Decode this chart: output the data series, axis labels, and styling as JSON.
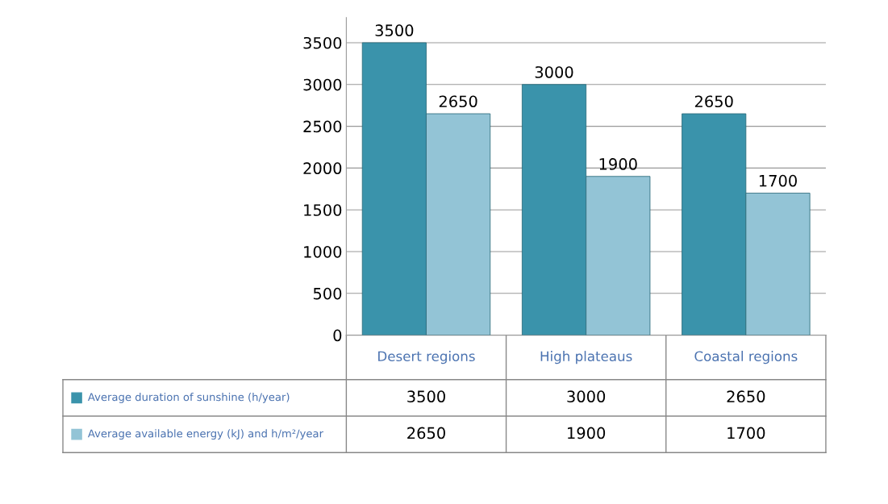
{
  "chart_data": {
    "type": "bar",
    "categories": [
      "Desert regions",
      "High plateaus",
      "Coastal regions"
    ],
    "series": [
      {
        "name": "Average duration of sunshine (h/year)",
        "color": "#3a93ab",
        "values": [
          3500,
          3000,
          2650
        ],
        "value_labels": [
          "3500",
          "3000",
          "2650"
        ]
      },
      {
        "name": "Average available energy (kJ) and h/m²/year",
        "color": "#93c4d6",
        "values": [
          2650,
          1900,
          1700
        ],
        "value_labels": [
          "2650",
          "1900",
          "1700"
        ]
      }
    ],
    "ylim": [
      0,
      3800
    ],
    "yticks": [
      0,
      500,
      1000,
      1500,
      2000,
      2500,
      3000,
      3500
    ],
    "grid": "y",
    "legend": "bottom",
    "annotations": [
      "3500",
      "3000",
      "2650",
      "2650",
      "1900",
      "1700"
    ]
  }
}
